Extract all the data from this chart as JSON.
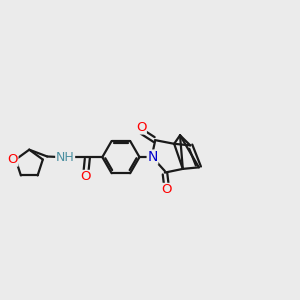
{
  "bg_color": "#ebebeb",
  "bond_color": "#1a1a1a",
  "bond_width": 1.6,
  "atom_colors": {
    "O": "#ff0000",
    "N": "#0000cc",
    "H": "#4a8fa0",
    "C": "#1a1a1a"
  },
  "font_size": 9.5,
  "figsize": [
    3.0,
    3.0
  ],
  "dpi": 100
}
